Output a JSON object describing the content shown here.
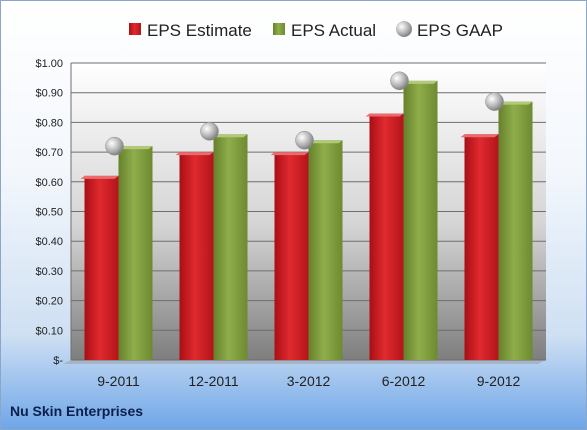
{
  "chart_data": {
    "type": "bar",
    "title": "",
    "xlabel": "",
    "ylabel": "",
    "categories": [
      "9-2011",
      "12-2011",
      "3-2012",
      "6-2012",
      "9-2012"
    ],
    "ylim": [
      0,
      1.0
    ],
    "yticks": [
      0,
      0.1,
      0.2,
      0.3,
      0.4,
      0.5,
      0.6,
      0.7,
      0.8,
      0.9,
      1.0
    ],
    "ytick_labels": [
      "$-",
      "$0.10",
      "$0.20",
      "$0.30",
      "$0.40",
      "$0.50",
      "$0.60",
      "$0.70",
      "$0.80",
      "$0.90",
      "$1.00"
    ],
    "grid": true,
    "legend_position": "top",
    "series": [
      {
        "name": "EPS Estimate",
        "kind": "bar",
        "color": "#c8161d",
        "values": [
          0.62,
          0.7,
          0.7,
          0.83,
          0.76
        ]
      },
      {
        "name": "EPS Actual",
        "kind": "bar",
        "color": "#7c9a3a",
        "values": [
          0.72,
          0.76,
          0.74,
          0.94,
          0.87
        ]
      },
      {
        "name": "EPS GAAP",
        "kind": "marker",
        "color": "#a9a9a9",
        "values": [
          0.72,
          0.77,
          0.74,
          0.94,
          0.87
        ]
      }
    ]
  },
  "footer": {
    "company": "Nu Skin Enterprises"
  }
}
